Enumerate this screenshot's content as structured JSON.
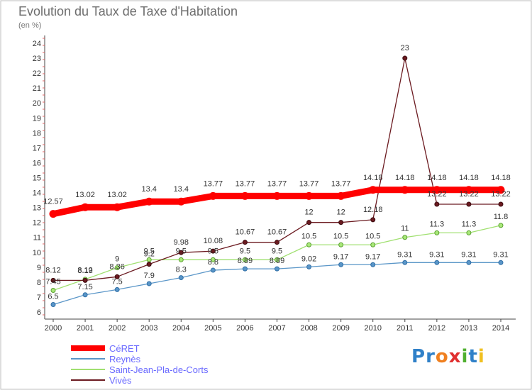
{
  "chart_data": {
    "type": "line",
    "title": "Evolution du Taux de Taxe d'Habitation",
    "unit_label": "(en %)",
    "x": [
      "2000",
      "2001",
      "2002",
      "2003",
      "2004",
      "2005",
      "2006",
      "2007",
      "2008",
      "2009",
      "2010",
      "2011",
      "2012",
      "2013",
      "2014"
    ],
    "ylim": [
      6,
      24
    ],
    "yticks": [
      6,
      7,
      8,
      9,
      10,
      11,
      12,
      13,
      14,
      15,
      16,
      17,
      18,
      19,
      20,
      21,
      22,
      23,
      24
    ],
    "grid": false,
    "legend_position": "bottom-left",
    "series": [
      {
        "name": "CéRET",
        "color": "#ff0000",
        "values": [
          12.57,
          13.02,
          13.02,
          13.4,
          13.4,
          13.77,
          13.77,
          13.77,
          13.77,
          13.77,
          14.18,
          14.18,
          14.18,
          14.18,
          14.18
        ],
        "labels": [
          "12.57",
          "13.02",
          "13.02",
          "13.4",
          "13.4",
          "13.77",
          "13.77",
          "13.77",
          "13.77",
          "13.77",
          "14.18",
          "14.18",
          "14.18",
          "14.18",
          "14.18"
        ]
      },
      {
        "name": "Reynès",
        "color": "#5a96c8",
        "values": [
          6.5,
          7.15,
          7.5,
          7.9,
          8.3,
          8.8,
          8.89,
          8.89,
          9.02,
          9.17,
          9.17,
          9.31,
          9.31,
          9.31,
          9.31
        ],
        "labels": [
          "6.5",
          "7.15",
          "7.5",
          "7.9",
          "8.3",
          "8.8",
          "8.89",
          "8.89",
          "9.02",
          "9.17",
          "9.17",
          "9.31",
          "9.31",
          "9.31",
          "9.31"
        ]
      },
      {
        "name": "Saint-Jean-Pla-de-Corts",
        "color": "#a0e070",
        "values": [
          7.45,
          8.19,
          8.96,
          9.5,
          9.5,
          9.5,
          9.5,
          9.5,
          10.5,
          10.5,
          10.5,
          11,
          11.3,
          11.3,
          11.8
        ],
        "labels": [
          "7.45",
          "8.19",
          "9",
          "9.5",
          "9.5",
          "9.5",
          "9.5",
          "9.5",
          "10.5",
          "10.5",
          "10.5",
          "11",
          "11.3",
          "11.3",
          "11.8"
        ]
      },
      {
        "name": "Vivès",
        "color": "#6b1a20",
        "values": [
          8.12,
          8.12,
          8.36,
          9.2,
          9.98,
          10.08,
          10.67,
          10.67,
          12,
          12,
          12.18,
          23,
          13.22,
          13.22,
          13.22
        ],
        "labels": [
          "8.12",
          "8.12",
          "8.36",
          "9.2",
          "9.98",
          "10.08",
          "10.67",
          "10.67",
          "12",
          "12",
          "12.18",
          "23",
          "13.22",
          "13.22",
          "13.22"
        ]
      }
    ]
  },
  "logo": {
    "text": "Proxiti"
  }
}
